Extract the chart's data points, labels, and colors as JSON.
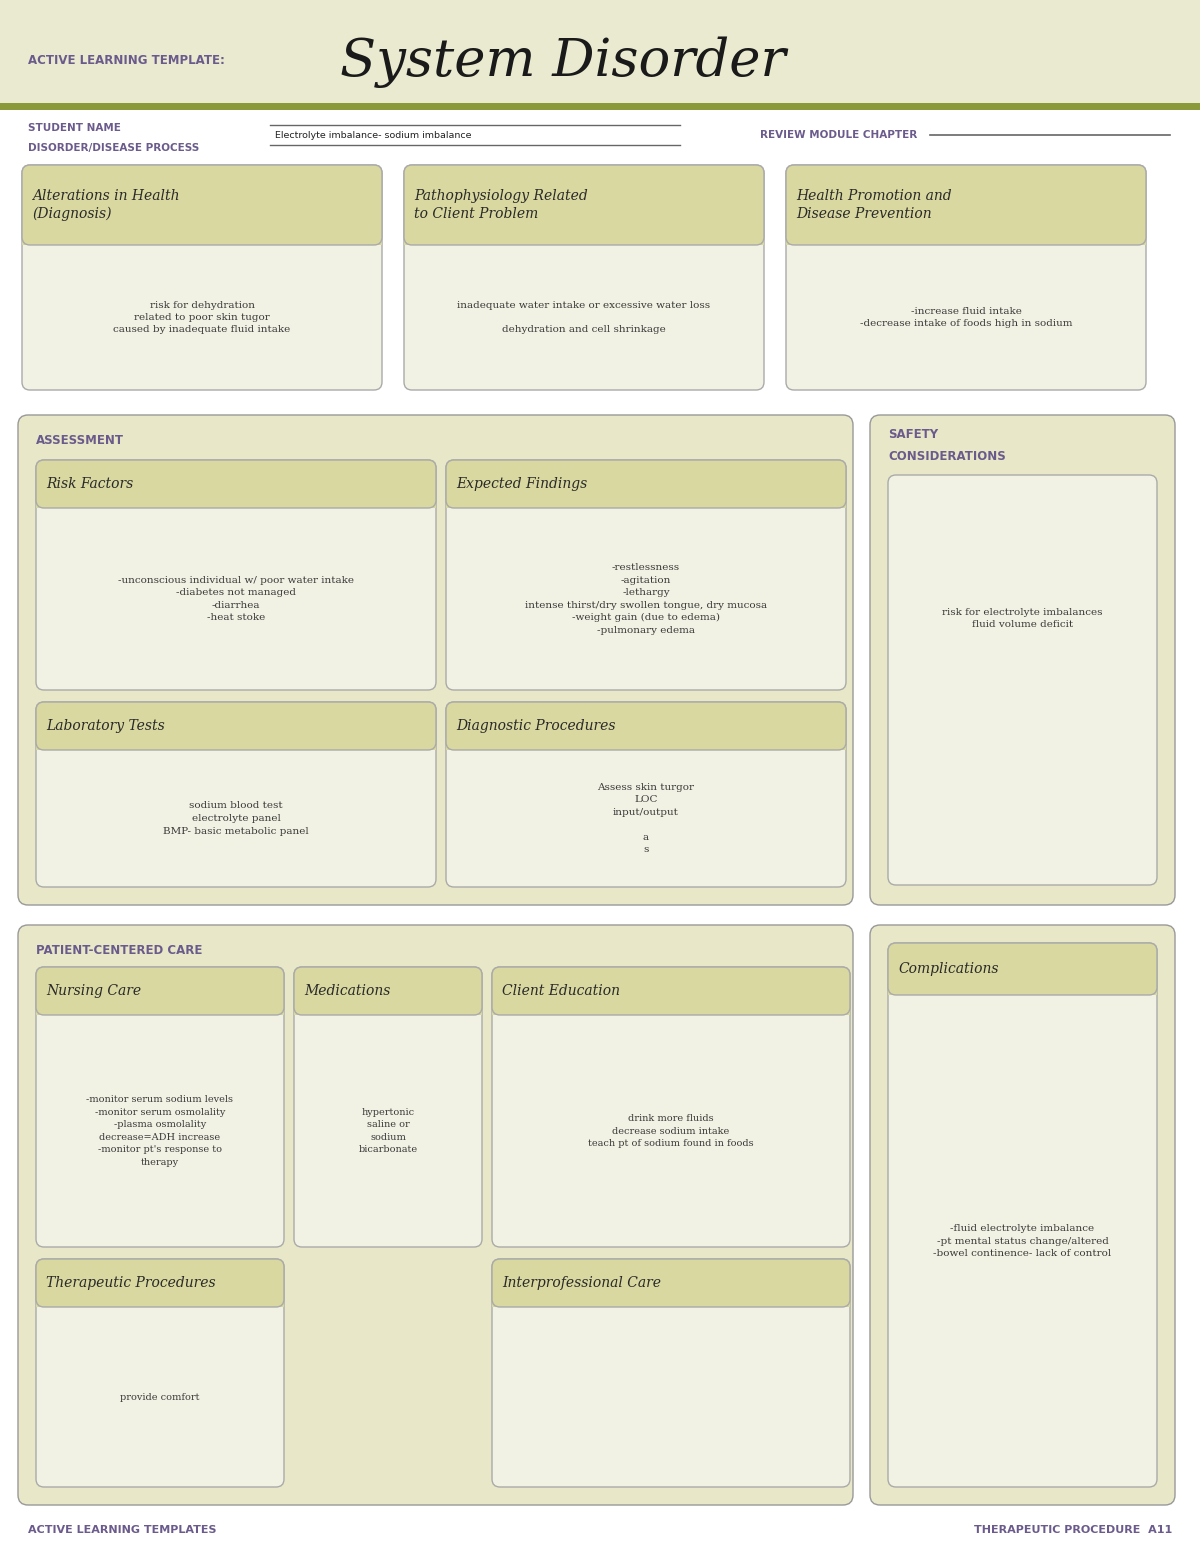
{
  "title_prefix": "ACTIVE LEARNING TEMPLATE:",
  "title_main": "System Disorder",
  "bg_color_header": "#eaead0",
  "bg_color_white": "#ffffff",
  "bg_color_section": "#e8e8c8",
  "bg_color_card_header": "#d8d8a0",
  "bg_color_card_body": "#f2f2e4",
  "stripe_color": "#8a9a3a",
  "text_color_purple": "#6b5b8c",
  "text_color_dark": "#2a2a2a",
  "text_color_body": "#3a3a3a",
  "student_label1": "STUDENT NAME",
  "student_label2": "DISORDER/DISEASE PROCESS",
  "disorder_value": "Electrolyte imbalance- sodium imbalance",
  "review_label": "REVIEW MODULE CHAPTER",
  "section1_title": "Alterations in Health\n(Diagnosis)",
  "section1_body": "risk for dehydration\nrelated to poor skin tugor\ncaused by inadequate fluid intake",
  "section2_title": "Pathophysiology Related\nto Client Problem",
  "section2_body": "inadequate water intake or excessive water loss\n\ndehydration and cell shrinkage",
  "section3_title": "Health Promotion and\nDisease Prevention",
  "section3_body": "-increase fluid intake\n-decrease intake of foods high in sodium",
  "assessment_label": "ASSESSMENT",
  "safety_label": "SAFETY\nCONSIDERATIONS",
  "risk_title": "Risk Factors",
  "risk_body": "-unconscious individual w/ poor water intake\n-diabetes not managed\n-diarrhea\n-heat stoke",
  "expected_title": "Expected Findings",
  "expected_body": "-restlessness\n-agitation\n-lethargy\nintense thirst/dry swollen tongue, dry mucosa\n-weight gain (due to edema)\n-pulmonary edema",
  "safety_body": "risk for electrolyte imbalances\nfluid volume deficit",
  "lab_title": "Laboratory Tests",
  "lab_body": "sodium blood test\nelectrolyte panel\nBMP- basic metabolic panel",
  "diag_title": "Diagnostic Procedures",
  "diag_body": "Assess skin turgor\nLOC\ninput/output\n\na\ns",
  "patient_label": "PATIENT-CENTERED CARE",
  "nursing_title": "Nursing Care",
  "nursing_body": "-monitor serum sodium levels\n-monitor serum osmolality\n-plasma osmolality\ndecrease=ADH increase\n-monitor pt's response to\ntherapy",
  "meds_title": "Medications",
  "meds_body": "hypertonic\nsaline or\nsodium\nbicarbonate",
  "client_title": "Client Education",
  "client_body": "drink more fluids\ndecrease sodium intake\nteach pt of sodium found in foods",
  "complications_title": "Complications",
  "complications_body": "-fluid electrolyte imbalance\n-pt mental status change/altered\n-bowel continence- lack of control",
  "therapeutic_title": "Therapeutic Procedures",
  "therapeutic_body": "provide comfort",
  "interpro_title": "Interprofessional Care",
  "interpro_body": "",
  "footer_left": "ACTIVE LEARNING TEMPLATES",
  "footer_right": "THERAPEUTIC PROCEDURE  A11"
}
